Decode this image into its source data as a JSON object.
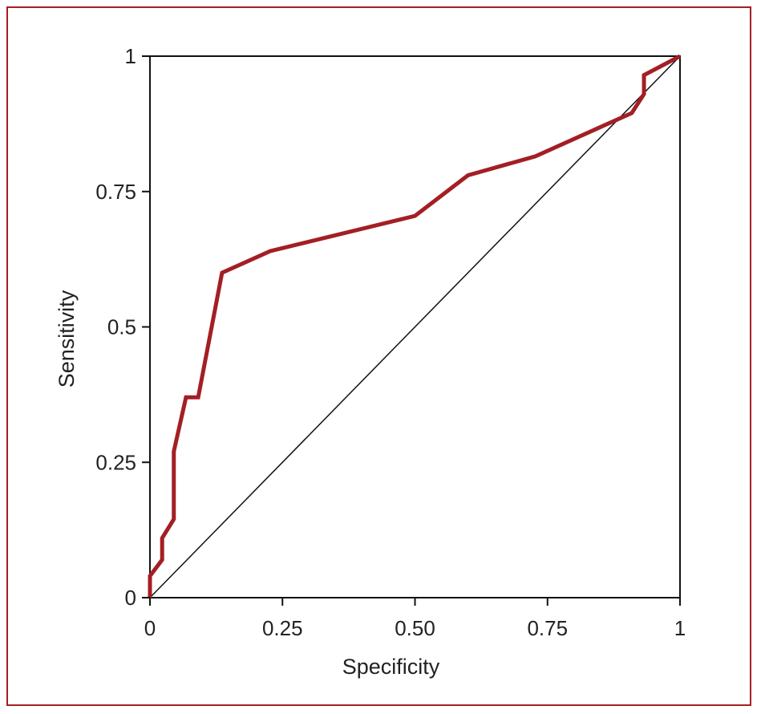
{
  "chart_data": {
    "type": "line",
    "title": "",
    "xlabel": "Specificity",
    "ylabel": "Sensitivity",
    "xlim": [
      0,
      1
    ],
    "ylim": [
      0,
      1
    ],
    "x_ticks": [
      0,
      0.25,
      0.5,
      0.75,
      1
    ],
    "x_tick_labels": [
      "0",
      "0.25",
      "0.50",
      "0.75",
      "1"
    ],
    "y_ticks": [
      0,
      0.25,
      0.5,
      0.75,
      1
    ],
    "y_tick_labels": [
      "0",
      "0.25",
      "0.5",
      "0.75",
      "1"
    ],
    "grid": false,
    "colors": {
      "curve": "#a31f24",
      "reference": "#111111",
      "frame": "#a31f24",
      "axes": "#111111"
    },
    "series": [
      {
        "x": [
          0,
          0,
          0.023,
          0.023,
          0.045,
          0.045,
          0.068,
          0.091,
          0.136,
          0.227,
          0.5,
          0.6,
          0.727,
          0.909,
          0.932,
          0.932,
          1
        ],
        "y": [
          0,
          0.04,
          0.07,
          0.11,
          0.145,
          0.27,
          0.37,
          0.37,
          0.6,
          0.64,
          0.705,
          0.78,
          0.815,
          0.895,
          0.93,
          0.965,
          1
        ]
      },
      {
        "x": [
          0,
          1
        ],
        "y": [
          0,
          1
        ]
      }
    ]
  }
}
